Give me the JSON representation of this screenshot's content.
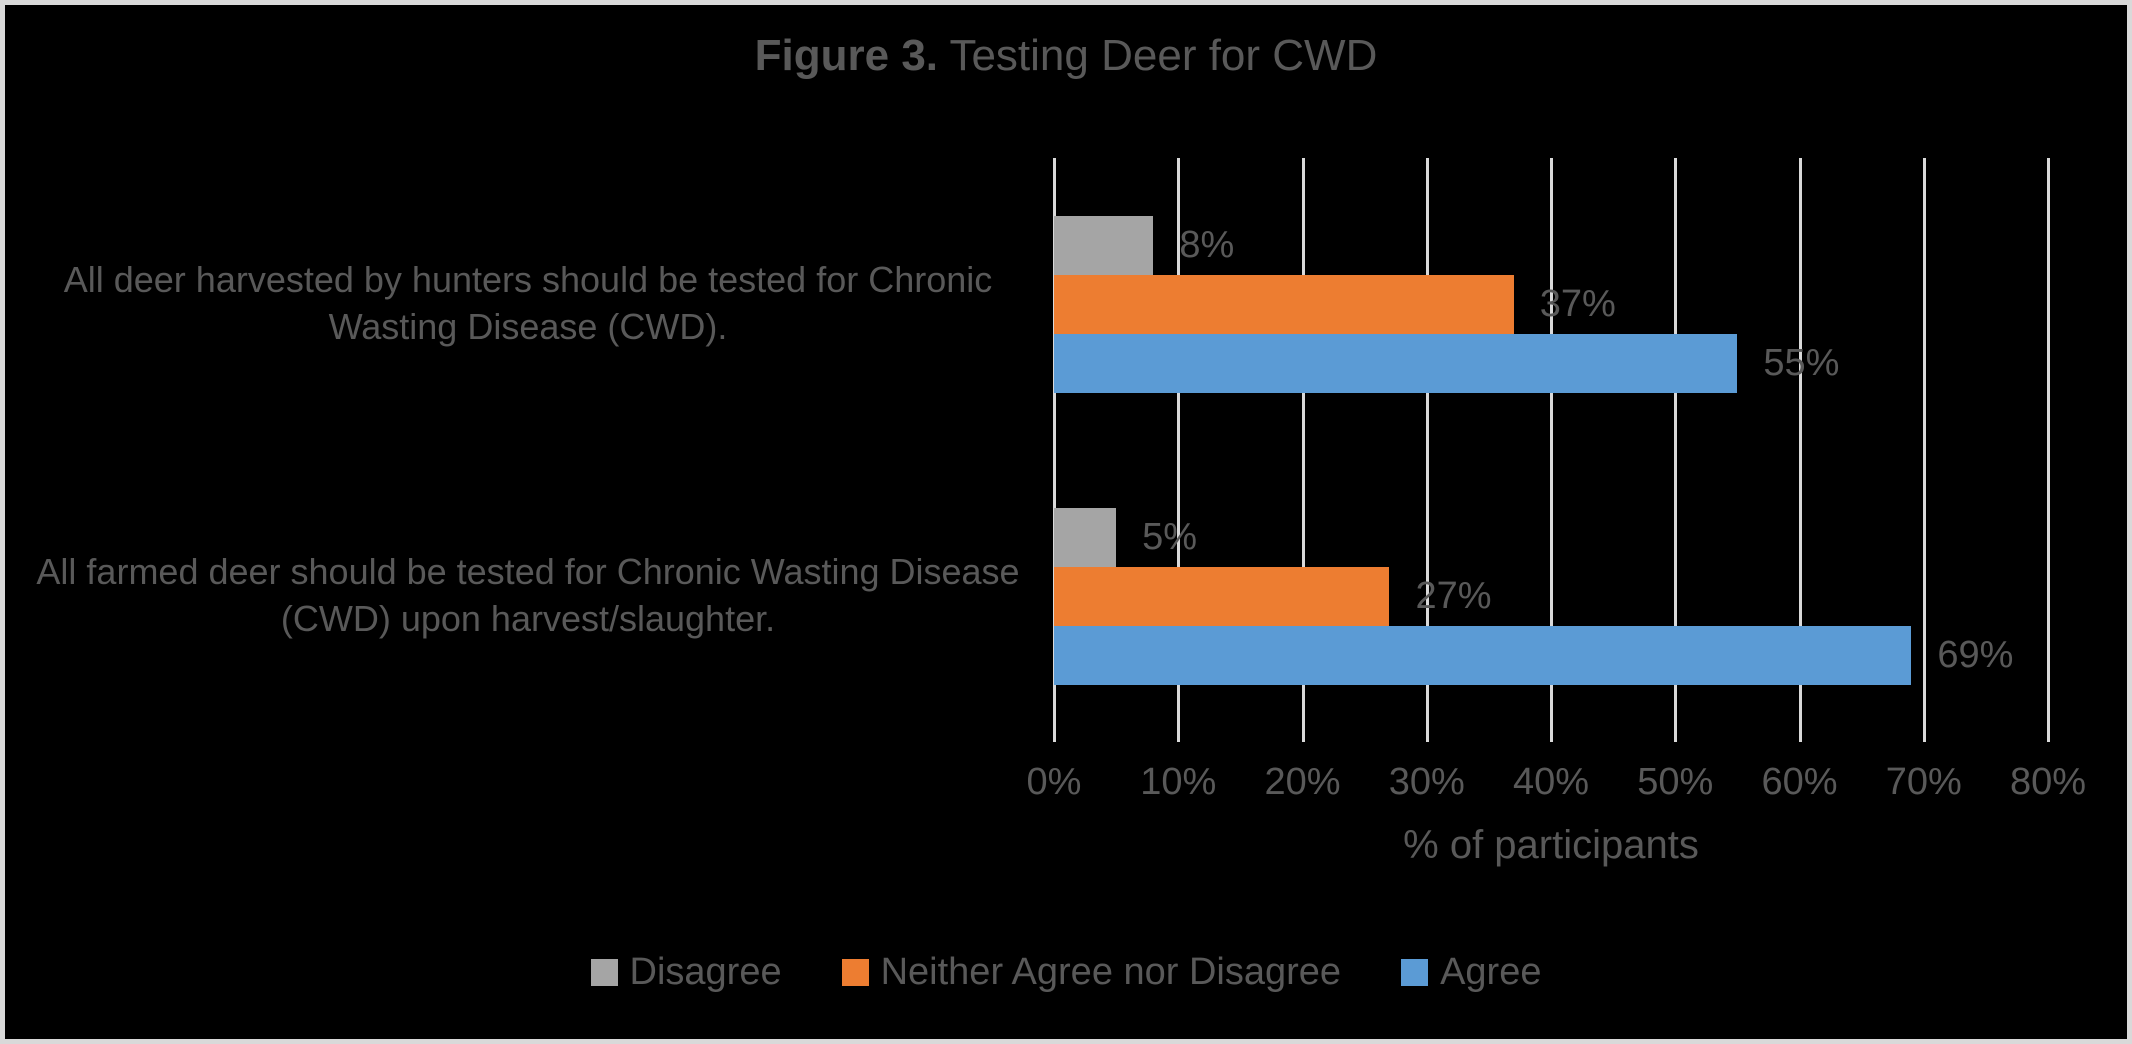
{
  "title": {
    "prefix": "Figure 3.",
    "rest": " Testing Deer for CWD"
  },
  "chart_data": {
    "type": "bar",
    "orientation": "horizontal",
    "title": "Figure 3. Testing Deer for CWD",
    "categories": [
      "All deer harvested by hunters should be tested for Chronic Wasting Disease (CWD).",
      "All farmed deer should be tested for Chronic Wasting Disease (CWD) upon harvest/slaughter."
    ],
    "series": [
      {
        "name": "Disagree",
        "color": "#a5a5a5",
        "values": [
          8,
          5
        ]
      },
      {
        "name": "Neither Agree nor Disagree",
        "color": "#ed7d31",
        "values": [
          37,
          27
        ]
      },
      {
        "name": "Agree",
        "color": "#5b9bd5",
        "values": [
          55,
          69
        ]
      }
    ],
    "value_suffix": "%",
    "xlabel": "% of participants",
    "xlim": [
      0,
      80
    ],
    "xticks": [
      "0%",
      "10%",
      "20%",
      "30%",
      "40%",
      "50%",
      "60%",
      "70%",
      "80%"
    ],
    "grid": true,
    "legend_position": "bottom"
  },
  "colors": {
    "background": "#000000",
    "frame": "#d9d9d9",
    "gridline": "#d9d9d9",
    "text": "#595959"
  }
}
